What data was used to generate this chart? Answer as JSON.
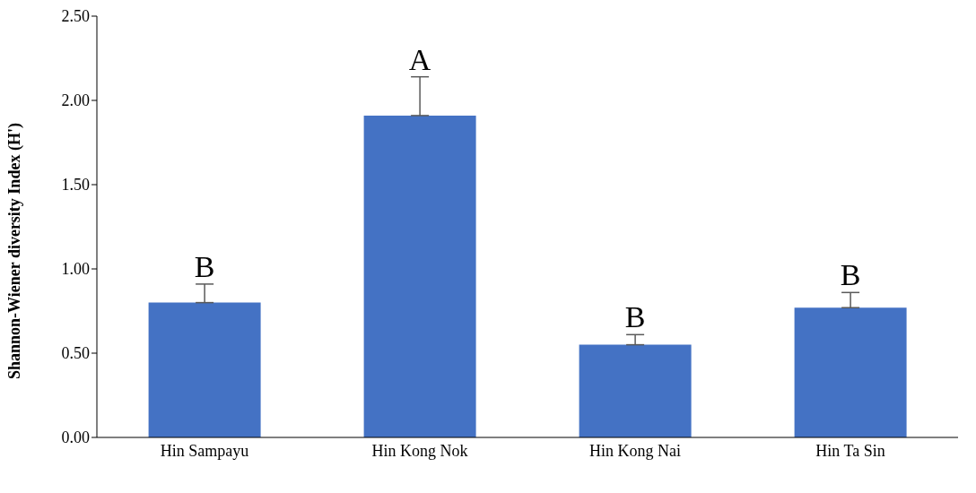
{
  "chart_data": {
    "type": "bar",
    "ylabel": "Shannon-Wiener diversity Index (H')",
    "categories": [
      "Hin Sampayu",
      "Hin Kong Nok",
      "Hin Kong Nai",
      "Hin Ta Sin"
    ],
    "values": [
      0.8,
      1.91,
      0.55,
      0.77
    ],
    "color": "#4472c4",
    "errors": [
      [
        0.8,
        0.91
      ],
      [
        1.91,
        2.14
      ],
      [
        0.55,
        0.61
      ],
      [
        0.77,
        0.86
      ]
    ],
    "ylim": [
      0,
      2.5
    ],
    "yticks": [
      {
        "value": 0,
        "label": "0.00"
      },
      {
        "value": 0.5,
        "label": "0.50"
      },
      {
        "value": 1,
        "label": "1.00"
      },
      {
        "value": 1.5,
        "label": "1.50"
      },
      {
        "value": 2,
        "label": "2.00"
      },
      {
        "value": 2.5,
        "label": "2.50"
      }
    ],
    "grid": false,
    "legend": false,
    "annotations": [
      {
        "text": "B",
        "x": "Hin Sampayu",
        "y": 0.91
      },
      {
        "text": "A",
        "x": "Hin Kong Nok",
        "y": 2.14
      },
      {
        "text": "B",
        "x": "Hin Kong Nai",
        "y": 0.61
      },
      {
        "text": "B",
        "x": "Hin Ta Sin",
        "y": 0.86
      }
    ]
  }
}
